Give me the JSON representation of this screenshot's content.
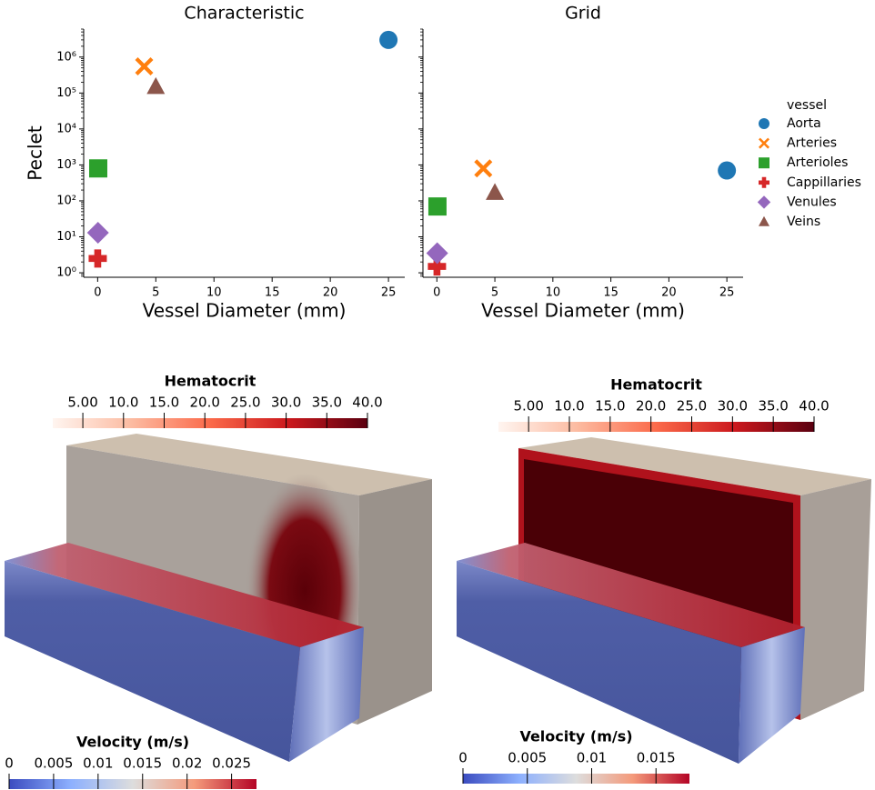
{
  "chart_data": [
    {
      "type": "scatter",
      "title": "Characteristic",
      "xlabel": "Vessel Diameter (mm)",
      "ylabel": "Peclet",
      "xlim": [
        -1.2,
        26.4
      ],
      "xticks": [
        0,
        5,
        10,
        15,
        20,
        25
      ],
      "ylim": [
        0.75,
        6000000
      ],
      "log_y": true,
      "yticks": [
        {
          "value": 1,
          "label": "10⁰"
        },
        {
          "value": 10,
          "label": "10¹"
        },
        {
          "value": 100,
          "label": "10²"
        },
        {
          "value": 1000,
          "label": "10³"
        },
        {
          "value": 10000,
          "label": "10⁴"
        },
        {
          "value": 100000,
          "label": "10⁵"
        },
        {
          "value": 1000000,
          "label": "10⁶"
        }
      ],
      "series": [
        {
          "name": "Aorta",
          "color": "#1f77b4",
          "marker": "circle",
          "x": [
            25
          ],
          "values": [
            3000000
          ]
        },
        {
          "name": "Arteries",
          "color": "#ff7f0e",
          "marker": "x",
          "x": [
            4
          ],
          "values": [
            550000
          ]
        },
        {
          "name": "Arterioles",
          "color": "#2ca02c",
          "marker": "square",
          "x": [
            0.05
          ],
          "values": [
            800
          ]
        },
        {
          "name": "Cappillaries",
          "color": "#d62728",
          "marker": "plus",
          "x": [
            0.008
          ],
          "values": [
            2.5
          ]
        },
        {
          "name": "Venules",
          "color": "#9467bd",
          "marker": "diamond",
          "x": [
            0.03
          ],
          "values": [
            13
          ]
        },
        {
          "name": "Veins",
          "color": "#8c564b",
          "marker": "triangle",
          "x": [
            5
          ],
          "values": [
            150000
          ]
        }
      ]
    },
    {
      "type": "scatter",
      "title": "Grid",
      "xlabel": "Vessel Diameter (mm)",
      "xlim": [
        -1.2,
        26.4
      ],
      "xticks": [
        0,
        5,
        10,
        15,
        20,
        25
      ],
      "ylim": [
        0.75,
        6000000
      ],
      "log_y": true,
      "show_ytick_labels": false,
      "yticks": [
        1,
        10,
        100,
        1000,
        10000,
        100000,
        1000000
      ],
      "legend": "outside right",
      "legend_title": "vessel",
      "series": [
        {
          "name": "Aorta",
          "color": "#1f77b4",
          "marker": "circle",
          "x": [
            25
          ],
          "values": [
            700
          ]
        },
        {
          "name": "Arteries",
          "color": "#ff7f0e",
          "marker": "x",
          "x": [
            4
          ],
          "values": [
            800
          ]
        },
        {
          "name": "Arterioles",
          "color": "#2ca02c",
          "marker": "square",
          "x": [
            0.05
          ],
          "values": [
            70
          ]
        },
        {
          "name": "Cappillaries",
          "color": "#d62728",
          "marker": "plus",
          "x": [
            0.008
          ],
          "values": [
            1.5
          ]
        },
        {
          "name": "Venules",
          "color": "#9467bd",
          "marker": "diamond",
          "x": [
            0.03
          ],
          "values": [
            3.5
          ]
        },
        {
          "name": "Veins",
          "color": "#8c564b",
          "marker": "triangle",
          "x": [
            5
          ],
          "values": [
            170
          ]
        }
      ]
    },
    {
      "type": "colorbar",
      "title": "Hematocrit",
      "lim": [
        1.3,
        40
      ],
      "colors": [
        "#fff5f0",
        "#fcbba1",
        "#fb6a4a",
        "#cb181d",
        "#5a0010"
      ],
      "ticks": [
        {
          "value": 5,
          "label": "5.00"
        },
        {
          "value": 10,
          "label": "10.0"
        },
        {
          "value": 15,
          "label": "15.0"
        },
        {
          "value": 20,
          "label": "20.0"
        },
        {
          "value": 25,
          "label": "25.0"
        },
        {
          "value": 30,
          "label": "30.0"
        },
        {
          "value": 35,
          "label": "35.0"
        },
        {
          "value": 40,
          "label": "40.0"
        }
      ]
    },
    {
      "type": "colorbar",
      "title": "Hematocrit",
      "lim": [
        1.3,
        40
      ],
      "colors": [
        "#fff5f0",
        "#fcbba1",
        "#fb6a4a",
        "#cb181d",
        "#5a0010"
      ],
      "ticks": [
        {
          "value": 5,
          "label": "5.00"
        },
        {
          "value": 10,
          "label": "10.0"
        },
        {
          "value": 15,
          "label": "15.0"
        },
        {
          "value": 20,
          "label": "20.0"
        },
        {
          "value": 25,
          "label": "25.0"
        },
        {
          "value": 30,
          "label": "30.0"
        },
        {
          "value": 35,
          "label": "35.0"
        },
        {
          "value": 40,
          "label": "40.0"
        }
      ]
    },
    {
      "type": "colorbar",
      "title": "Velocity (m/s)",
      "lim": [
        0,
        0.0278
      ],
      "colors": [
        "#3b4cc0",
        "#8db0fe",
        "#dddddd",
        "#f49a7b",
        "#b40426"
      ],
      "ticks": [
        0,
        0.005,
        0.01,
        0.015,
        0.02,
        0.025
      ]
    },
    {
      "type": "colorbar",
      "title": "Velocity (m/s)",
      "lim": [
        0,
        0.0176
      ],
      "colors": [
        "#3b4cc0",
        "#8db0fe",
        "#dddddd",
        "#f49a7b",
        "#b40426"
      ],
      "ticks": [
        0,
        0.005,
        0.01,
        0.015
      ]
    }
  ]
}
